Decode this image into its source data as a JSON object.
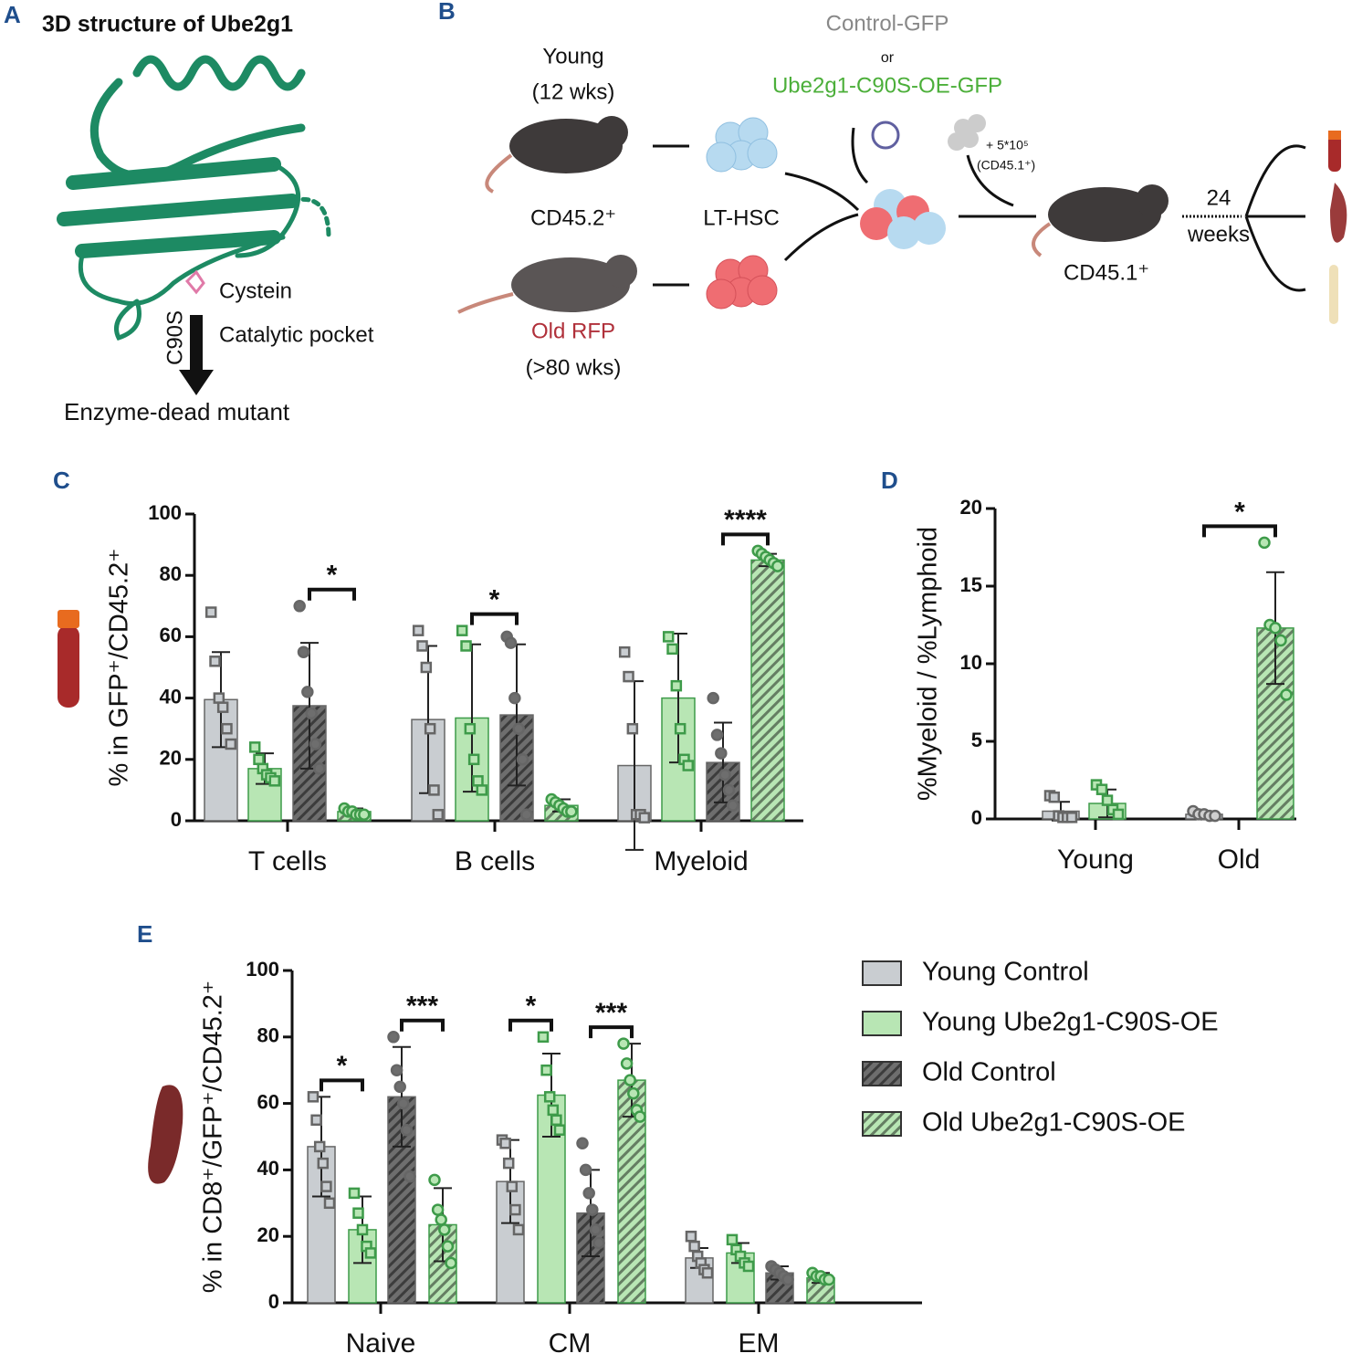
{
  "panel_a": {
    "letter": "A",
    "title": "3D structure of Ube2g1",
    "cysteine": "Cystein",
    "mutation": "C90S",
    "pocket": "Catalytic pocket",
    "result": "Enzyme-dead mutant"
  },
  "panel_b": {
    "letter": "B",
    "young": "Young",
    "young_age": "(12 wks)",
    "donor_marker": "CD45.2⁺",
    "cell": "LT-HSC",
    "old": "Old RFP",
    "old_age": "(>80 wks)",
    "control_vector": "Control-GFP",
    "or": "or",
    "oe_vector": "Ube2g1-C90S-OE-GFP",
    "support_cells": "+ 5*10⁵",
    "support_marker": "(CD45.1⁺)",
    "recipient": "CD45.1⁺",
    "duration": "24",
    "duration_unit": "weeks"
  },
  "chart_data": [
    {
      "type": "bar",
      "letter": "C",
      "ylabel": "% in GFP⁺/CD45.2⁺",
      "categories": [
        "T cells",
        "B cells",
        "Myeloid"
      ],
      "ylim": [
        0,
        100
      ],
      "yticks": [
        0,
        20,
        40,
        60,
        80,
        100
      ],
      "series": [
        {
          "color": "#c9cdd1",
          "edge_color": "#666666",
          "hatch": false,
          "marker": "square",
          "values": [
            39.5,
            33,
            18
          ],
          "errors": [
            15.5,
            24,
            27.5
          ],
          "points": [
            [
              68,
              52,
              40,
              37,
              30,
              25
            ],
            [
              62,
              57,
              50,
              30,
              10,
              2
            ],
            [
              55,
              47,
              30,
              2,
              2,
              1
            ]
          ]
        },
        {
          "color": "#b8e6b4",
          "edge_color": "#3e9b4a",
          "hatch": false,
          "marker": "square",
          "values": [
            17,
            33.5,
            40
          ],
          "errors": [
            5,
            24,
            21
          ],
          "points": [
            [
              24,
              20,
              17,
              15,
              14,
              13
            ],
            [
              62,
              57,
              30,
              20,
              13,
              10
            ],
            [
              60,
              56,
              44,
              30,
              20,
              18
            ]
          ]
        },
        {
          "color": "#6e6e6e",
          "edge_color": "#666666",
          "hatch": true,
          "marker": "circle",
          "values": [
            37.5,
            34.5,
            19
          ],
          "errors": [
            20.5,
            23,
            13
          ],
          "points": [
            [
              70,
              55,
              42,
              35,
              25,
              17
            ],
            [
              60,
              58,
              40,
              30,
              20,
              2
            ],
            [
              40,
              28,
              22,
              15,
              10,
              5
            ]
          ]
        },
        {
          "color": "#b8e6b4",
          "edge_color": "#3e9b4a",
          "hatch": true,
          "marker": "circle",
          "values": [
            3,
            5,
            85
          ],
          "errors": [
            1,
            2,
            2
          ],
          "points": [
            [
              4,
              3,
              3,
              2,
              2,
              2
            ],
            [
              7,
              6,
              5,
              4,
              3,
              3
            ],
            [
              88,
              87,
              86,
              85,
              84,
              83
            ]
          ]
        }
      ],
      "significance": [
        {
          "label": "*",
          "category": 0,
          "series": [
            2,
            3
          ]
        },
        {
          "label": "*",
          "category": 1,
          "series": [
            1,
            2
          ]
        },
        {
          "label": "****",
          "category": 2,
          "series": [
            2,
            3
          ]
        }
      ]
    },
    {
      "type": "bar",
      "letter": "D",
      "ylabel": "%Myeloid / %Lymphoid",
      "categories": [
        "Young",
        "Old"
      ],
      "ylim": [
        0,
        20
      ],
      "yticks": [
        0,
        5,
        10,
        15,
        20
      ],
      "series": [
        {
          "color": "#c9cdd1",
          "edge_color": "#666666",
          "hatch": false,
          "marker": "square",
          "values": [
            0.5,
            null
          ],
          "errors": [
            0.6,
            null
          ],
          "points": [
            [
              1.5,
              1.4,
              0.2,
              0.1,
              0.1,
              0.1
            ],
            null
          ]
        },
        {
          "color": "#b8e6b4",
          "edge_color": "#3e9b4a",
          "hatch": false,
          "marker": "square",
          "values": [
            1.0,
            null
          ],
          "errors": [
            0.9,
            null
          ],
          "points": [
            [
              2.2,
              1.9,
              1.2,
              0.6,
              0.3
            ],
            null
          ]
        },
        {
          "color": "#c9cdd1",
          "edge_color": "#666666",
          "hatch": false,
          "marker": "circle",
          "values": [
            null,
            0.3
          ],
          "errors": [
            null,
            0.2
          ],
          "points": [
            null,
            [
              0.5,
              0.3,
              0.3,
              0.2,
              0.2
            ]
          ]
        },
        {
          "color": "#b8e6b4",
          "edge_color": "#3e9b4a",
          "hatch": true,
          "marker": "circle",
          "values": [
            null,
            12.3
          ],
          "errors": [
            null,
            3.6
          ],
          "points": [
            null,
            [
              17.8,
              12.5,
              12.3,
              11.5,
              8.0
            ]
          ]
        }
      ],
      "significance": [
        {
          "label": "*",
          "category": 1,
          "series": [
            2,
            3
          ]
        }
      ]
    },
    {
      "type": "bar",
      "letter": "E",
      "ylabel": "% in CD8⁺/GFP⁺/CD45.2⁺",
      "categories": [
        "Naive",
        "CM",
        "EM"
      ],
      "ylim": [
        0,
        100
      ],
      "yticks": [
        0,
        20,
        40,
        60,
        80,
        100
      ],
      "legend": "right",
      "series": [
        {
          "name": "Young Control",
          "color": "#c9cdd1",
          "edge_color": "#666666",
          "hatch": false,
          "marker": "square",
          "values": [
            47,
            36.5,
            13.5
          ],
          "errors": [
            15,
            12.5,
            3
          ],
          "points": [
            [
              62,
              55,
              47,
              42,
              35,
              30
            ],
            [
              49,
              48,
              42,
              35,
              28,
              22
            ],
            [
              20,
              17,
              14,
              12,
              10,
              9
            ]
          ]
        },
        {
          "name": "Young Ube2g1-C90S-OE",
          "color": "#b8e6b4",
          "edge_color": "#3e9b4a",
          "hatch": false,
          "marker": "square",
          "values": [
            22,
            62.5,
            15
          ],
          "errors": [
            10,
            12.5,
            3
          ],
          "points": [
            [
              33,
              27,
              22,
              17,
              15
            ],
            [
              80,
              70,
              62,
              58,
              55,
              52
            ],
            [
              19,
              16,
              14,
              12,
              11
            ]
          ]
        },
        {
          "name": "Old Control",
          "color": "#6e6e6e",
          "edge_color": "#666666",
          "hatch": true,
          "marker": "circle",
          "values": [
            62,
            27,
            9
          ],
          "errors": [
            15,
            13,
            2
          ],
          "points": [
            [
              80,
              70,
              65,
              60,
              52,
              38
            ],
            [
              48,
              40,
              33,
              28,
              22,
              18
            ],
            [
              11,
              10,
              9,
              8,
              7
            ]
          ]
        },
        {
          "name": "Old Ube2g1-C90S-OE",
          "color": "#b8e6b4",
          "edge_color": "#3e9b4a",
          "hatch": true,
          "marker": "circle",
          "values": [
            23.5,
            67,
            7.5
          ],
          "errors": [
            11,
            11,
            1.5
          ],
          "points": [
            [
              37,
              28,
              25,
              22,
              17,
              12
            ],
            [
              78,
              72,
              67,
              63,
              58,
              56
            ],
            [
              9,
              8,
              8,
              7,
              7
            ]
          ]
        }
      ],
      "significance": [
        {
          "label": "*",
          "category": 0,
          "series": [
            0,
            1
          ]
        },
        {
          "label": "***",
          "category": 0,
          "series": [
            2,
            3
          ]
        },
        {
          "label": "*",
          "category": 1,
          "series": [
            0,
            1
          ]
        },
        {
          "label": "***",
          "category": 1,
          "series": [
            2,
            3
          ]
        }
      ]
    }
  ]
}
